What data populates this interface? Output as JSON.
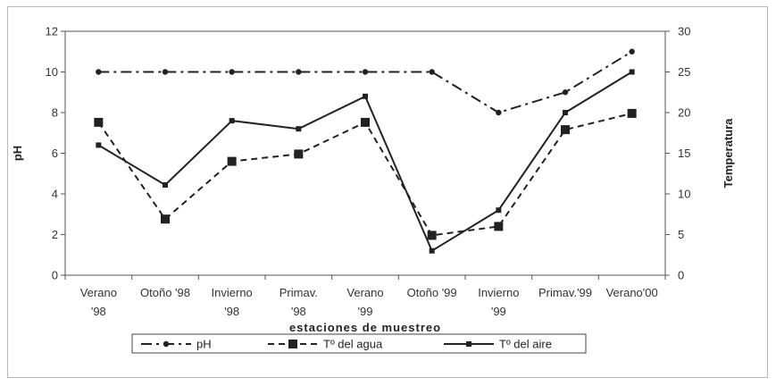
{
  "chart_data": {
    "type": "line",
    "categories": [
      [
        "Verano",
        "'98"
      ],
      [
        "Otoño '98"
      ],
      [
        "Invierno",
        "'98"
      ],
      [
        "Primav.",
        "'98"
      ],
      [
        "Verano",
        "'99"
      ],
      [
        "Otoño '99"
      ],
      [
        "Invierno",
        "'99"
      ],
      [
        "Primav.'99"
      ],
      [
        "Verano'00"
      ]
    ],
    "xlabel": "estaciones de muestreo",
    "ylabel_left": "pH",
    "ylabel_right": "Temperatura",
    "ylim_left": [
      0,
      12
    ],
    "ylim_right": [
      0,
      30
    ],
    "yticks_left": [
      "0",
      "2",
      "4",
      "6",
      "8",
      "10",
      "12"
    ],
    "yticks_right": [
      "0",
      "5",
      "10",
      "15",
      "20",
      "25",
      "30"
    ],
    "grid": false,
    "legend_position": "bottom",
    "series": [
      {
        "name": "pH",
        "axis": "left",
        "style": "dashdot",
        "marker": "dot",
        "color": "#222222",
        "values": [
          10,
          10,
          10,
          10,
          10,
          10,
          8,
          9,
          11
        ]
      },
      {
        "name": "Tº del agua",
        "axis": "right",
        "style": "dashed",
        "marker": "square",
        "color": "#222222",
        "values": [
          18.8,
          6.9,
          14,
          14.9,
          18.8,
          4.9,
          6,
          17.9,
          19.9
        ]
      },
      {
        "name": "Tº del aire",
        "axis": "right",
        "style": "solid",
        "marker": "small-square",
        "color": "#222222",
        "values": [
          16,
          11.1,
          19,
          18,
          22,
          3,
          8,
          20,
          25
        ]
      }
    ]
  }
}
